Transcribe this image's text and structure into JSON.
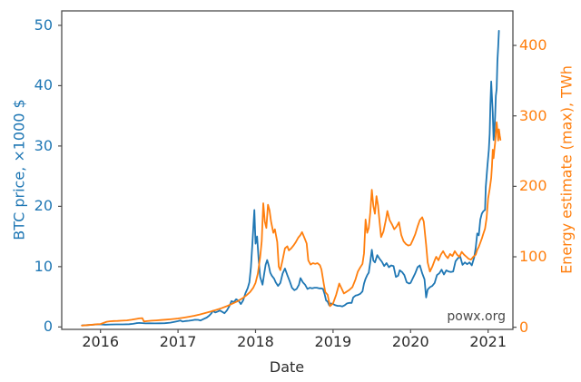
{
  "chart_data": {
    "type": "line",
    "title": "",
    "xlabel": "Date",
    "watermark": "powx.org",
    "grid": false,
    "legend": "none",
    "x_axis": {
      "lim": [
        2015.5,
        2021.32
      ],
      "ticks": [
        2016,
        2017,
        2018,
        2019,
        2020,
        2021
      ],
      "tick_labels": [
        "2016",
        "2017",
        "2018",
        "2019",
        "2020",
        "2021"
      ]
    },
    "y_axis_left": {
      "label": "BTC price, ×1000 $",
      "color": "#1f77b4",
      "lim": [
        -0.4,
        52.4
      ],
      "ticks": [
        0,
        10,
        20,
        30,
        40,
        50
      ]
    },
    "y_axis_right": {
      "label": "Energy estimate (max), TWh",
      "color": "#ff7f0e",
      "lim": [
        -3,
        449
      ],
      "ticks": [
        0,
        100,
        200,
        300,
        400
      ]
    },
    "series": [
      {
        "name": "BTC price",
        "axis": "left",
        "color": "#1f77b4",
        "x": [
          2015.76,
          2015.83,
          2015.9,
          2015.96,
          2016.0,
          2016.06,
          2016.13,
          2016.21,
          2016.29,
          2016.37,
          2016.42,
          2016.46,
          2016.5,
          2016.54,
          2016.58,
          2016.63,
          2016.7,
          2016.77,
          2016.83,
          2016.9,
          2016.96,
          2017.0,
          2017.03,
          2017.06,
          2017.1,
          2017.14,
          2017.18,
          2017.22,
          2017.26,
          2017.29,
          2017.33,
          2017.37,
          2017.4,
          2017.43,
          2017.45,
          2017.48,
          2017.51,
          2017.54,
          2017.57,
          2017.6,
          2017.63,
          2017.66,
          2017.69,
          2017.72,
          2017.75,
          2017.78,
          2017.81,
          2017.84,
          2017.87,
          2017.9,
          2017.92,
          2017.94,
          2017.96,
          2017.975,
          2017.985,
          2018.0,
          2018.02,
          2018.04,
          2018.06,
          2018.09,
          2018.11,
          2018.13,
          2018.15,
          2018.17,
          2018.19,
          2018.21,
          2018.24,
          2018.26,
          2018.29,
          2018.32,
          2018.35,
          2018.38,
          2018.41,
          2018.44,
          2018.47,
          2018.5,
          2018.53,
          2018.56,
          2018.58,
          2018.61,
          2018.64,
          2018.67,
          2018.7,
          2018.73,
          2018.76,
          2018.79,
          2018.82,
          2018.85,
          2018.87,
          2018.89,
          2018.91,
          2018.93,
          2018.95,
          2018.97,
          2019.0,
          2019.03,
          2019.06,
          2019.09,
          2019.12,
          2019.15,
          2019.18,
          2019.21,
          2019.24,
          2019.26,
          2019.29,
          2019.32,
          2019.35,
          2019.38,
          2019.4,
          2019.42,
          2019.44,
          2019.46,
          2019.48,
          2019.5,
          2019.52,
          2019.54,
          2019.57,
          2019.6,
          2019.63,
          2019.66,
          2019.69,
          2019.72,
          2019.75,
          2019.78,
          2019.81,
          2019.84,
          2019.86,
          2019.89,
          2019.92,
          2019.95,
          2019.98,
          2020.0,
          2020.03,
          2020.06,
          2020.09,
          2020.12,
          2020.15,
          2020.18,
          2020.2,
          2020.22,
          2020.25,
          2020.28,
          2020.31,
          2020.34,
          2020.37,
          2020.4,
          2020.43,
          2020.46,
          2020.49,
          2020.52,
          2020.55,
          2020.58,
          2020.61,
          2020.64,
          2020.67,
          2020.7,
          2020.73,
          2020.76,
          2020.79,
          2020.82,
          2020.84,
          2020.86,
          2020.88,
          2020.9,
          2020.92,
          2020.94,
          2020.96,
          2020.97,
          2020.99,
          2021.01,
          2021.02,
          2021.03,
          2021.04,
          2021.05,
          2021.06,
          2021.07,
          2021.08,
          2021.09,
          2021.1,
          2021.11,
          2021.12,
          2021.13,
          2021.14
        ],
        "values": [
          0.26,
          0.3,
          0.36,
          0.42,
          0.43,
          0.38,
          0.41,
          0.42,
          0.42,
          0.45,
          0.52,
          0.63,
          0.67,
          0.64,
          0.59,
          0.61,
          0.6,
          0.61,
          0.63,
          0.71,
          0.86,
          0.97,
          1.08,
          0.9,
          0.99,
          1.03,
          1.1,
          1.19,
          1.18,
          1.08,
          1.32,
          1.55,
          1.85,
          2.25,
          2.67,
          2.4,
          2.55,
          2.73,
          2.5,
          2.28,
          2.73,
          3.4,
          4.3,
          4.1,
          4.6,
          4.35,
          3.8,
          4.4,
          5.6,
          6.45,
          7.4,
          9.9,
          14.0,
          17.4,
          19.4,
          13.8,
          15.0,
          11.2,
          8.3,
          7.0,
          8.7,
          10.3,
          11.1,
          10.2,
          9.0,
          8.5,
          8.0,
          7.4,
          6.8,
          7.3,
          8.9,
          9.7,
          8.6,
          7.6,
          6.5,
          6.1,
          6.3,
          7.0,
          8.1,
          7.4,
          7.0,
          6.3,
          6.5,
          6.4,
          6.5,
          6.5,
          6.4,
          6.4,
          6.3,
          5.5,
          4.4,
          4.2,
          3.6,
          3.9,
          3.8,
          3.6,
          3.5,
          3.5,
          3.4,
          3.6,
          3.9,
          4.0,
          4.0,
          4.9,
          5.2,
          5.3,
          5.5,
          5.9,
          7.2,
          8.0,
          8.6,
          9.0,
          10.8,
          12.8,
          11.0,
          10.7,
          11.9,
          11.3,
          10.8,
          10.1,
          10.6,
          9.9,
          10.2,
          10.1,
          8.3,
          8.5,
          9.4,
          9.1,
          8.6,
          7.4,
          7.2,
          7.3,
          8.1,
          8.9,
          9.9,
          10.2,
          8.9,
          7.9,
          4.9,
          6.2,
          6.6,
          6.8,
          7.3,
          8.6,
          8.9,
          9.5,
          8.7,
          9.4,
          9.2,
          9.1,
          9.2,
          10.9,
          11.4,
          11.7,
          10.3,
          10.7,
          10.4,
          10.7,
          10.2,
          11.5,
          13.1,
          15.5,
          15.2,
          17.8,
          18.8,
          19.2,
          19.4,
          23.2,
          26.5,
          29.4,
          32.0,
          36.8,
          40.7,
          38.2,
          35.5,
          31.0,
          32.3,
          34.9,
          38.3,
          39.5,
          44.0,
          46.5,
          49.1
        ]
      },
      {
        "name": "Energy estimate (max)",
        "axis": "right",
        "color": "#ff7f0e",
        "x": [
          2015.76,
          2015.83,
          2015.9,
          2015.96,
          2016.0,
          2016.04,
          2016.08,
          2016.12,
          2016.17,
          2016.22,
          2016.28,
          2016.34,
          2016.4,
          2016.46,
          2016.5,
          2016.54,
          2016.56,
          2016.6,
          2016.66,
          2016.72,
          2016.78,
          2016.84,
          2016.9,
          2016.96,
          2017.0,
          2017.07,
          2017.14,
          2017.21,
          2017.28,
          2017.35,
          2017.42,
          2017.49,
          2017.56,
          2017.63,
          2017.7,
          2017.77,
          2017.83,
          2017.88,
          2017.93,
          2017.97,
          2018.0,
          2018.03,
          2018.06,
          2018.08,
          2018.1,
          2018.12,
          2018.14,
          2018.16,
          2018.18,
          2018.2,
          2018.23,
          2018.25,
          2018.28,
          2018.3,
          2018.32,
          2018.35,
          2018.38,
          2018.41,
          2018.43,
          2018.46,
          2018.49,
          2018.52,
          2018.55,
          2018.58,
          2018.6,
          2018.63,
          2018.66,
          2018.68,
          2018.71,
          2018.74,
          2018.77,
          2018.8,
          2018.83,
          2018.85,
          2018.88,
          2018.9,
          2018.93,
          2018.96,
          2019.0,
          2019.04,
          2019.08,
          2019.11,
          2019.14,
          2019.17,
          2019.21,
          2019.25,
          2019.29,
          2019.32,
          2019.35,
          2019.38,
          2019.4,
          2019.42,
          2019.44,
          2019.46,
          2019.48,
          2019.5,
          2019.52,
          2019.54,
          2019.56,
          2019.58,
          2019.6,
          2019.62,
          2019.65,
          2019.68,
          2019.7,
          2019.73,
          2019.76,
          2019.79,
          2019.82,
          2019.85,
          2019.88,
          2019.91,
          2019.94,
          2019.97,
          2020.0,
          2020.03,
          2020.06,
          2020.09,
          2020.12,
          2020.15,
          2020.17,
          2020.2,
          2020.22,
          2020.25,
          2020.28,
          2020.31,
          2020.33,
          2020.36,
          2020.39,
          2020.42,
          2020.45,
          2020.48,
          2020.51,
          2020.54,
          2020.57,
          2020.6,
          2020.63,
          2020.66,
          2020.69,
          2020.72,
          2020.75,
          2020.78,
          2020.81,
          2020.84,
          2020.86,
          2020.88,
          2020.9,
          2020.92,
          2020.94,
          2020.96,
          2020.98,
          2021.0,
          2021.02,
          2021.04,
          2021.05,
          2021.06,
          2021.07,
          2021.08,
          2021.09,
          2021.11,
          2021.12,
          2021.13,
          2021.14,
          2021.15,
          2021.16
        ],
        "values": [
          2.4,
          3.0,
          3.7,
          4.3,
          4.6,
          6.2,
          7.8,
          8.5,
          8.8,
          9.0,
          9.3,
          9.8,
          10.6,
          11.8,
          12.6,
          13.0,
          8.2,
          8.7,
          9.3,
          9.8,
          10.3,
          10.8,
          11.3,
          11.9,
          12.4,
          13.6,
          14.9,
          16.3,
          18.1,
          20.2,
          22.3,
          24.5,
          27.0,
          30.0,
          33.5,
          37.0,
          41.0,
          45.0,
          50.0,
          56.0,
          63,
          76,
          100,
          122,
          176,
          150,
          141,
          174,
          166,
          150,
          134,
          139,
          121,
          86,
          81,
          96,
          112,
          115,
          109,
          112,
          116,
          121,
          127,
          131,
          135,
          127,
          119,
          95,
          89,
          91,
          90,
          91,
          88,
          82,
          62,
          50,
          46,
          30,
          34,
          46,
          62,
          55,
          48,
          50,
          53,
          57,
          68,
          79,
          85,
          90,
          105,
          153,
          134,
          141,
          163,
          195,
          172,
          161,
          186,
          173,
          150,
          128,
          136,
          152,
          165,
          152,
          146,
          139,
          143,
          149,
          131,
          122,
          118,
          116,
          117,
          124,
          132,
          143,
          152,
          156,
          150,
          117,
          92,
          79,
          86,
          95,
          100,
          95,
          103,
          108,
          102,
          98,
          104,
          101,
          108,
          103,
          100,
          107,
          103,
          100,
          97,
          96,
          100,
          103,
          110,
          114,
          120,
          126,
          133,
          140,
          155,
          183,
          196,
          212,
          228,
          252,
          240,
          251,
          262,
          291,
          280,
          265,
          281,
          272,
          266
        ]
      }
    ]
  },
  "style": {
    "background": "#ffffff",
    "spine_color": "#4d4d4d",
    "tick_color": "#4d4d4d",
    "x_tick_label_color": "#2b2b2b",
    "watermark_color": "#4a4a4a"
  }
}
